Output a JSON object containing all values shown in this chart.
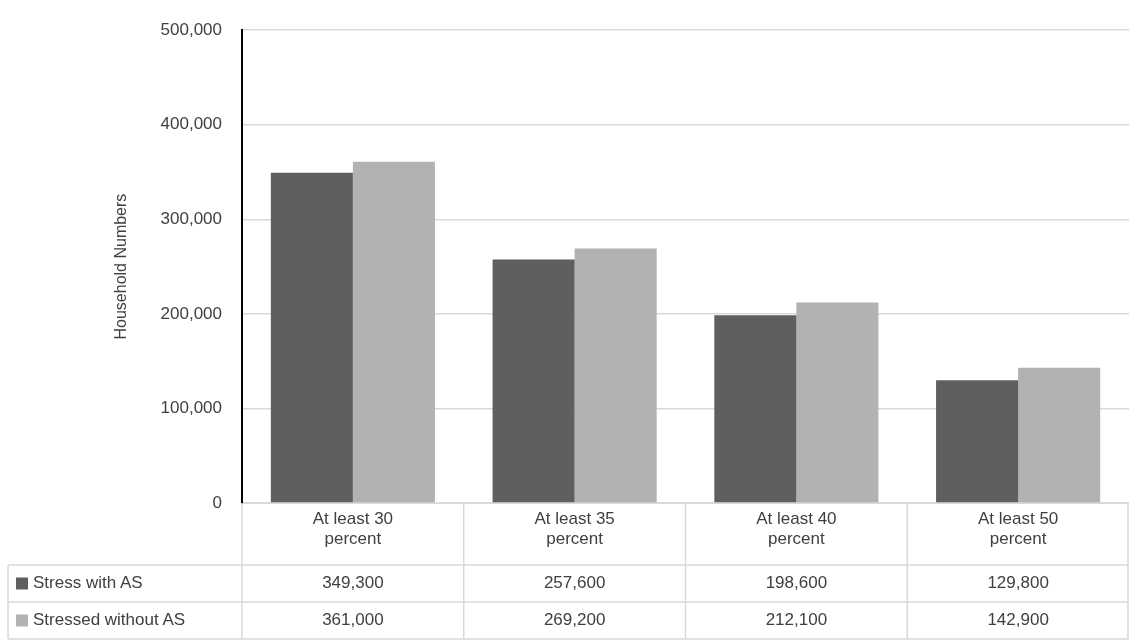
{
  "chart_data": {
    "type": "bar",
    "ylabel": "Household Numbers",
    "categories": [
      "At least 30 percent",
      "At least 35 percent",
      "At least 40 percent",
      "At least 50 percent"
    ],
    "series": [
      {
        "name": "Stress with AS",
        "color": "#5f5f5f",
        "values": [
          349300,
          257600,
          198600,
          129800
        ],
        "value_labels": [
          "349,300",
          "257,600",
          "198,600",
          "129,800"
        ]
      },
      {
        "name": "Stressed without AS",
        "color": "#b2b2b2",
        "values": [
          361000,
          269200,
          212100,
          142900
        ],
        "value_labels": [
          "361,000",
          "269,200",
          "212,100",
          "142,900"
        ]
      }
    ],
    "ylim": [
      0,
      500000
    ],
    "yticks": [
      {
        "value": 0,
        "label": "0"
      },
      {
        "value": 100000,
        "label": "100,000"
      },
      {
        "value": 200000,
        "label": "200,000"
      },
      {
        "value": 300000,
        "label": "300,000"
      },
      {
        "value": 400000,
        "label": "400,000"
      },
      {
        "value": 500000,
        "label": "500,000"
      }
    ],
    "grid": "y",
    "legend": "bottom"
  }
}
